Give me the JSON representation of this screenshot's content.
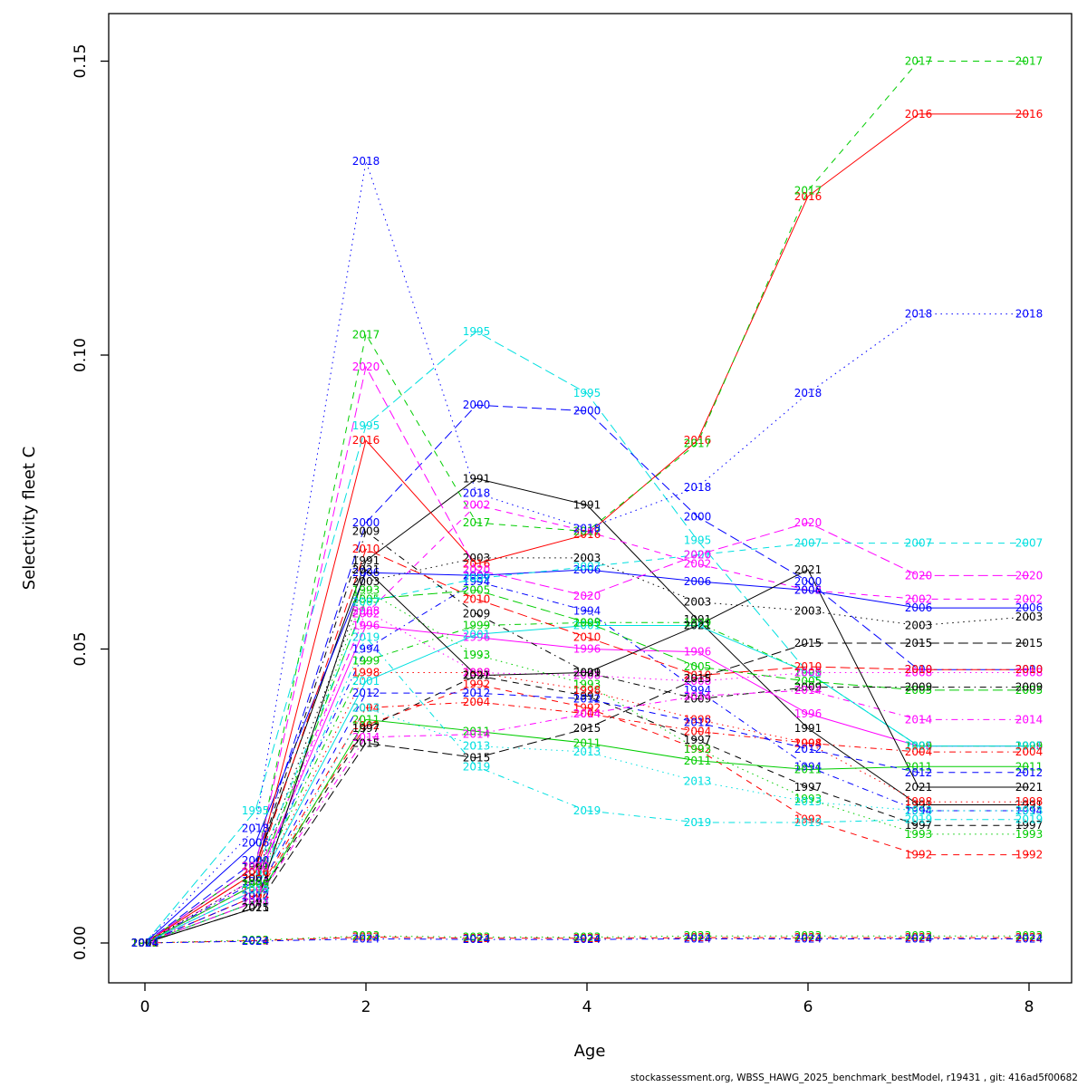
{
  "footer": {
    "credit": "stockassessment.org, WBSS_HAWG_2025_benchmark_bestModel, r19431 , git: 416ad5f00682"
  },
  "chart_data": {
    "type": "line",
    "title": "",
    "xlabel": "Age",
    "ylabel": "Selectivity fleet C",
    "x": [
      0,
      1,
      2,
      3,
      4,
      5,
      6,
      7,
      8
    ],
    "xlim": [
      0,
      8
    ],
    "ylim": [
      0,
      0.15
    ],
    "x_ticks": [
      0,
      2,
      4,
      6,
      8
    ],
    "y_ticks": [
      "0.00",
      "0.05",
      "0.10",
      "0.15"
    ],
    "grid": false,
    "legend": "labels on lines, one per year at each age",
    "palette_cycle": [
      "#000000",
      "#FF0000",
      "#00CD00",
      "#0000FF",
      "#00E0E0",
      "#FF00FF"
    ],
    "dash_cycle": [
      "solid",
      "dashed",
      "dotted",
      "dotdash",
      "longdash"
    ],
    "series": [
      {
        "name": "1991",
        "color": "#000000",
        "dash": "solid",
        "values": [
          0,
          0.013,
          0.065,
          0.079,
          0.0745,
          0.055,
          0.0365,
          0.0235,
          0.0235
        ]
      },
      {
        "name": "1992",
        "color": "#FF0000",
        "dash": "dashed",
        "values": [
          0,
          0.008,
          0.037,
          0.044,
          0.04,
          0.033,
          0.021,
          0.015,
          0.015
        ]
      },
      {
        "name": "1993",
        "color": "#00CD00",
        "dash": "dotted",
        "values": [
          0,
          0.01,
          0.06,
          0.049,
          0.044,
          0.033,
          0.0245,
          0.0185,
          0.0185
        ]
      },
      {
        "name": "1994",
        "color": "#0000FF",
        "dash": "dotdash",
        "values": [
          0,
          0.0105,
          0.05,
          0.0615,
          0.0565,
          0.043,
          0.03,
          0.0225,
          0.0225
        ]
      },
      {
        "name": "1995",
        "color": "#00E0E0",
        "dash": "longdash",
        "values": [
          0,
          0.0225,
          0.088,
          0.104,
          0.0935,
          0.0685,
          0.046,
          0.0335,
          0.0335
        ]
      },
      {
        "name": "1996",
        "color": "#FF00FF",
        "dash": "solid",
        "values": [
          0,
          0.01,
          0.054,
          0.052,
          0.05,
          0.0495,
          0.039,
          0.0335,
          0.0335
        ]
      },
      {
        "name": "1997",
        "color": "#000000",
        "dash": "dashed",
        "values": [
          0,
          0.007,
          0.0365,
          0.0455,
          0.042,
          0.0345,
          0.0265,
          0.02,
          0.02
        ]
      },
      {
        "name": "1998",
        "color": "#FF0000",
        "dash": "dotted",
        "values": [
          0,
          0.009,
          0.046,
          0.046,
          0.043,
          0.038,
          0.034,
          0.024,
          0.024
        ]
      },
      {
        "name": "1999",
        "color": "#00CD00",
        "dash": "dotdash",
        "values": [
          0,
          0.01,
          0.048,
          0.054,
          0.0545,
          0.0545,
          0.046,
          0.0335,
          0.0335
        ]
      },
      {
        "name": "2000",
        "color": "#0000FF",
        "dash": "longdash",
        "values": [
          0,
          0.014,
          0.0715,
          0.0915,
          0.0905,
          0.0725,
          0.0615,
          0.0465,
          0.0465
        ]
      },
      {
        "name": "2001",
        "color": "#00E0E0",
        "dash": "solid",
        "values": [
          0,
          0.009,
          0.0445,
          0.0525,
          0.054,
          0.054,
          0.046,
          0.0335,
          0.0335
        ]
      },
      {
        "name": "2002",
        "color": "#FF00FF",
        "dash": "dashed",
        "values": [
          0,
          0.011,
          0.056,
          0.0745,
          0.07,
          0.0645,
          0.06,
          0.0585,
          0.0585
        ]
      },
      {
        "name": "2003",
        "color": "#000000",
        "dash": "dotted",
        "values": [
          0,
          0.011,
          0.0615,
          0.0655,
          0.0655,
          0.058,
          0.0565,
          0.054,
          0.0555
        ]
      },
      {
        "name": "2004",
        "color": "#FF0000",
        "dash": "dotdash",
        "values": [
          0,
          0.008,
          0.04,
          0.041,
          0.039,
          0.036,
          0.034,
          0.0325,
          0.0325
        ]
      },
      {
        "name": "2005",
        "color": "#00CD00",
        "dash": "longdash",
        "values": [
          0,
          0.01,
          0.0585,
          0.06,
          0.0545,
          0.047,
          0.0445,
          0.043,
          0.043
        ]
      },
      {
        "name": "2006",
        "color": "#0000FF",
        "dash": "solid",
        "values": [
          0,
          0.017,
          0.063,
          0.0625,
          0.0635,
          0.0615,
          0.06,
          0.057,
          0.057
        ]
      },
      {
        "name": "2007",
        "color": "#00E0E0",
        "dash": "dashed",
        "values": [
          0,
          0.012,
          0.058,
          0.062,
          0.064,
          0.066,
          0.068,
          0.068,
          0.068
        ]
      },
      {
        "name": "2008",
        "color": "#FF00FF",
        "dash": "dotted",
        "values": [
          0,
          0.009,
          0.0565,
          0.046,
          0.0455,
          0.0445,
          0.046,
          0.046,
          0.046
        ]
      },
      {
        "name": "2009",
        "color": "#000000",
        "dash": "dotdash",
        "values": [
          0,
          0.013,
          0.07,
          0.056,
          0.046,
          0.0415,
          0.0435,
          0.0435,
          0.0435
        ]
      },
      {
        "name": "2010",
        "color": "#FF0000",
        "dash": "longdash",
        "values": [
          0,
          0.012,
          0.067,
          0.0585,
          0.052,
          0.0455,
          0.047,
          0.0465,
          0.0465
        ]
      },
      {
        "name": "2011",
        "color": "#00CD00",
        "dash": "solid",
        "values": [
          0,
          0.007,
          0.038,
          0.036,
          0.034,
          0.031,
          0.0295,
          0.03,
          0.03
        ]
      },
      {
        "name": "2012",
        "color": "#0000FF",
        "dash": "dashed",
        "values": [
          0,
          0.008,
          0.0425,
          0.0425,
          0.0415,
          0.0375,
          0.033,
          0.029,
          0.029
        ]
      },
      {
        "name": "2013",
        "color": "#00E0E0",
        "dash": "dotted",
        "values": [
          0,
          0.007,
          0.04,
          0.0335,
          0.0325,
          0.0275,
          0.024,
          0.0225,
          0.0225
        ]
      },
      {
        "name": "2014",
        "color": "#FF00FF",
        "dash": "dotdash",
        "values": [
          0,
          0.007,
          0.035,
          0.0355,
          0.039,
          0.042,
          0.043,
          0.038,
          0.038
        ]
      },
      {
        "name": "2015",
        "color": "#000000",
        "dash": "longdash",
        "values": [
          0,
          0.006,
          0.034,
          0.0315,
          0.0365,
          0.045,
          0.051,
          0.051,
          0.051
        ]
      },
      {
        "name": "2016",
        "color": "#FF0000",
        "dash": "solid",
        "values": [
          0,
          0.012,
          0.0855,
          0.0645,
          0.0695,
          0.0855,
          0.127,
          0.141,
          0.141
        ]
      },
      {
        "name": "2017",
        "color": "#00CD00",
        "dash": "dashed",
        "values": [
          0,
          0.013,
          0.1035,
          0.0715,
          0.07,
          0.085,
          0.128,
          0.15,
          0.15
        ]
      },
      {
        "name": "2018",
        "color": "#0000FF",
        "dash": "dotted",
        "values": [
          0,
          0.0195,
          0.133,
          0.0765,
          0.0705,
          0.0775,
          0.0935,
          0.107,
          0.107
        ]
      },
      {
        "name": "2019",
        "color": "#00E0E0",
        "dash": "dotdash",
        "values": [
          0,
          0.009,
          0.052,
          0.03,
          0.0225,
          0.0205,
          0.0205,
          0.021,
          0.021
        ]
      },
      {
        "name": "2020",
        "color": "#FF00FF",
        "dash": "longdash",
        "values": [
          0,
          0.013,
          0.098,
          0.0635,
          0.059,
          0.066,
          0.0715,
          0.0625,
          0.0625
        ]
      },
      {
        "name": "2021",
        "color": "#000000",
        "dash": "solid",
        "values": [
          0,
          0.006,
          0.0635,
          0.0455,
          0.046,
          0.054,
          0.0635,
          0.0265,
          0.0265
        ]
      },
      {
        "name": "2022",
        "color": "#FF0000",
        "dash": "dashed",
        "values": [
          0,
          0.0004,
          0.001,
          0.0008,
          0.0008,
          0.0009,
          0.0009,
          0.0009,
          0.0009
        ]
      },
      {
        "name": "2023",
        "color": "#00CD00",
        "dash": "dotted",
        "values": [
          0,
          0.0005,
          0.0012,
          0.001,
          0.001,
          0.0012,
          0.0012,
          0.0012,
          0.0012
        ]
      },
      {
        "name": "2024",
        "color": "#0000FF",
        "dash": "dotdash",
        "values": [
          0,
          0.0003,
          0.0007,
          0.0006,
          0.0006,
          0.0007,
          0.0007,
          0.0007,
          0.0007
        ]
      }
    ]
  }
}
